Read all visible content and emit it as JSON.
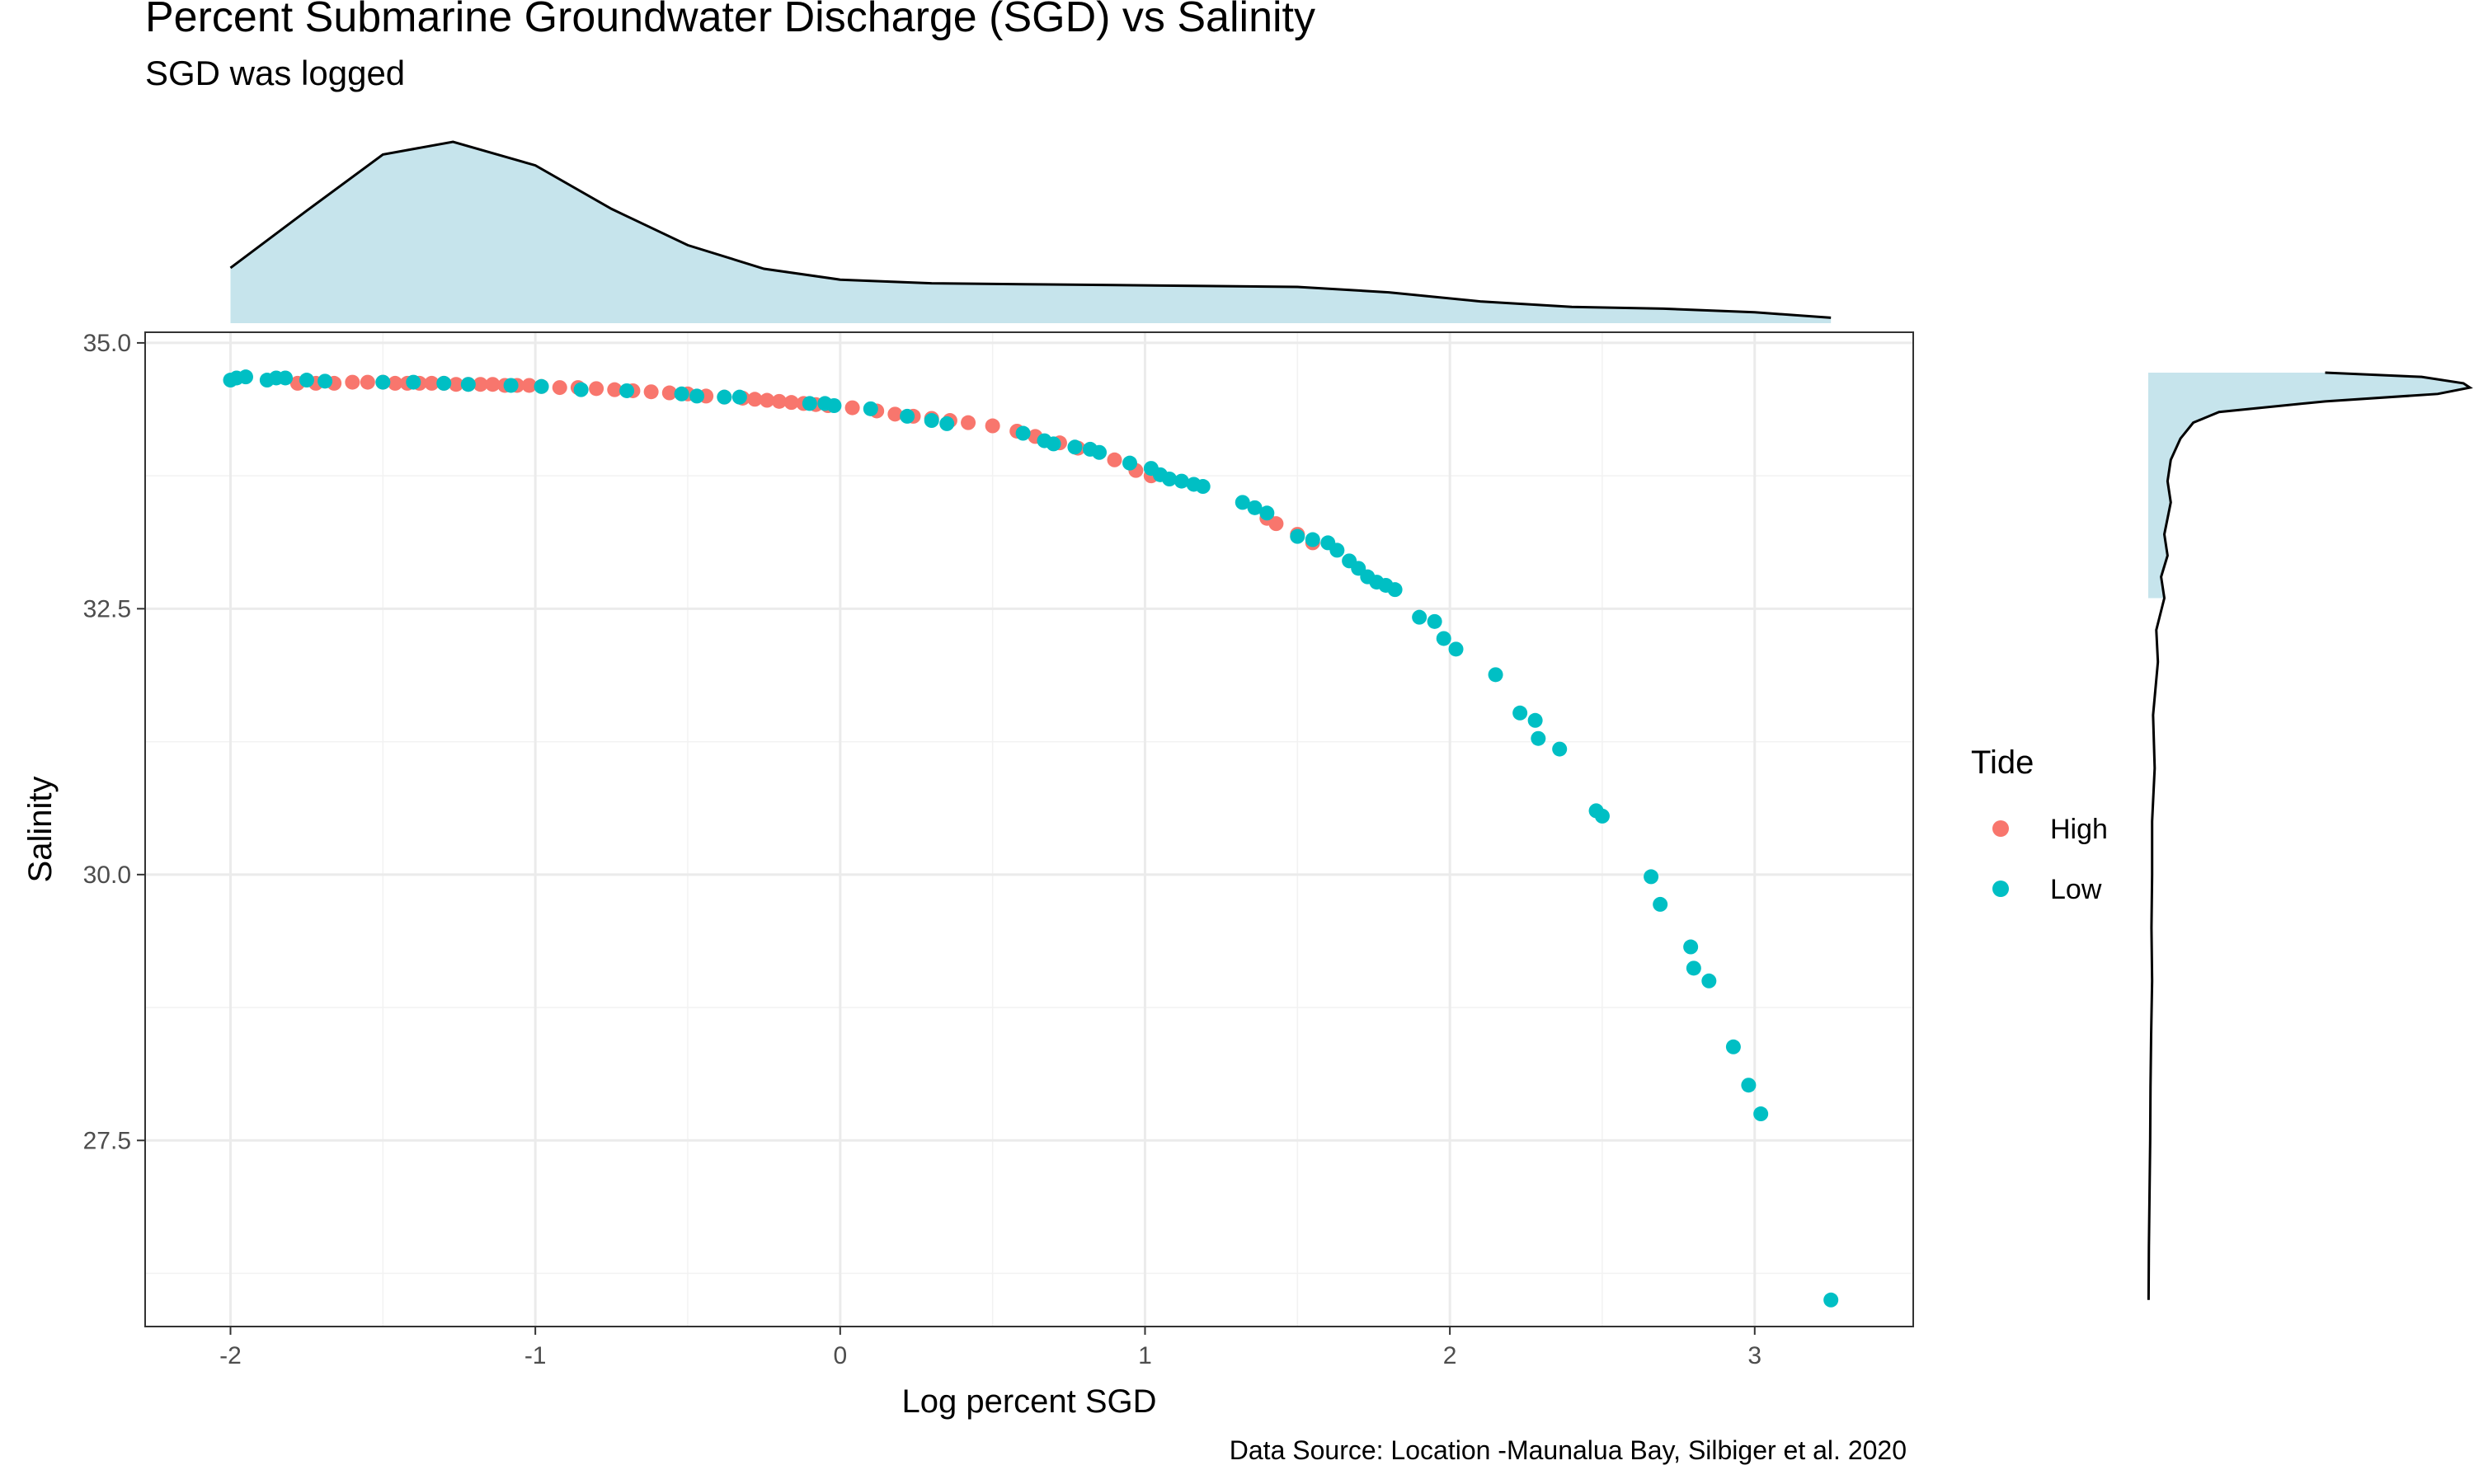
{
  "chart_data": {
    "type": "scatter",
    "title": "Percent Submarine Groundwater Discharge (SGD) vs Salinity",
    "subtitle": "SGD was logged",
    "xlabel": "Log percent SGD",
    "ylabel": "Salinity",
    "caption": "Data Source: Location -Maunalua Bay, Silbiger et al. 2020",
    "xlim": [
      -2.28,
      3.52
    ],
    "ylim": [
      25.75,
      35.1
    ],
    "x_ticks": [
      -2,
      -1,
      0,
      1,
      2,
      3
    ],
    "x_tick_labels": [
      "-2",
      "-1",
      "0",
      "1",
      "2",
      "3"
    ],
    "y_ticks": [
      27.5,
      30.0,
      32.5,
      35.0
    ],
    "y_tick_labels": [
      "27.5",
      "30.0",
      "32.5",
      "35.0"
    ],
    "grid": true,
    "legend": {
      "title": "Tide",
      "position": "right",
      "entries": [
        {
          "label": "High",
          "color": "#F8766D"
        },
        {
          "label": "Low",
          "color": "#00BFC4"
        }
      ]
    },
    "marginal_plots": {
      "top": "density of Log percent SGD",
      "right": "density of Salinity",
      "fill": "#c6e4ec"
    },
    "series": [
      {
        "name": "High",
        "color": "#F8766D",
        "points": [
          [
            -1.78,
            34.62
          ],
          [
            -1.72,
            34.62
          ],
          [
            -1.66,
            34.62
          ],
          [
            -1.6,
            34.63
          ],
          [
            -1.55,
            34.63
          ],
          [
            -1.5,
            34.63
          ],
          [
            -1.46,
            34.62
          ],
          [
            -1.42,
            34.62
          ],
          [
            -1.38,
            34.62
          ],
          [
            -1.34,
            34.62
          ],
          [
            -1.3,
            34.62
          ],
          [
            -1.26,
            34.61
          ],
          [
            -1.22,
            34.61
          ],
          [
            -1.18,
            34.61
          ],
          [
            -1.14,
            34.61
          ],
          [
            -1.1,
            34.6
          ],
          [
            -1.06,
            34.6
          ],
          [
            -1.02,
            34.6
          ],
          [
            -0.98,
            34.59
          ],
          [
            -0.92,
            34.58
          ],
          [
            -0.86,
            34.58
          ],
          [
            -0.8,
            34.57
          ],
          [
            -0.74,
            34.56
          ],
          [
            -0.68,
            34.55
          ],
          [
            -0.62,
            34.54
          ],
          [
            -0.56,
            34.53
          ],
          [
            -0.5,
            34.52
          ],
          [
            -0.44,
            34.5
          ],
          [
            -0.38,
            34.49
          ],
          [
            -0.32,
            34.48
          ],
          [
            -0.28,
            34.47
          ],
          [
            -0.24,
            34.46
          ],
          [
            -0.2,
            34.45
          ],
          [
            -0.16,
            34.44
          ],
          [
            -0.12,
            34.43
          ],
          [
            -0.08,
            34.42
          ],
          [
            -0.04,
            34.41
          ],
          [
            0.04,
            34.39
          ],
          [
            0.12,
            34.36
          ],
          [
            0.18,
            34.33
          ],
          [
            0.24,
            34.31
          ],
          [
            0.3,
            34.29
          ],
          [
            0.36,
            34.27
          ],
          [
            0.42,
            34.25
          ],
          [
            0.5,
            34.22
          ],
          [
            0.58,
            34.17
          ],
          [
            0.64,
            34.12
          ],
          [
            0.72,
            34.06
          ],
          [
            0.78,
            34.01
          ],
          [
            0.9,
            33.9
          ],
          [
            0.97,
            33.8
          ],
          [
            1.02,
            33.75
          ],
          [
            1.4,
            33.35
          ],
          [
            1.43,
            33.3
          ],
          [
            1.5,
            33.2
          ],
          [
            1.55,
            33.12
          ]
        ]
      },
      {
        "name": "Low",
        "color": "#00BFC4",
        "points": [
          [
            -2.0,
            34.65
          ],
          [
            -1.98,
            34.67
          ],
          [
            -1.95,
            34.68
          ],
          [
            -1.88,
            34.65
          ],
          [
            -1.85,
            34.67
          ],
          [
            -1.82,
            34.67
          ],
          [
            -1.75,
            34.65
          ],
          [
            -1.69,
            34.64
          ],
          [
            -1.5,
            34.63
          ],
          [
            -1.4,
            34.63
          ],
          [
            -1.3,
            34.62
          ],
          [
            -1.22,
            34.61
          ],
          [
            -1.08,
            34.6
          ],
          [
            -0.98,
            34.59
          ],
          [
            -0.85,
            34.56
          ],
          [
            -0.7,
            34.55
          ],
          [
            -0.52,
            34.52
          ],
          [
            -0.47,
            34.5
          ],
          [
            -0.38,
            34.49
          ],
          [
            -0.33,
            34.49
          ],
          [
            -0.1,
            34.43
          ],
          [
            -0.05,
            34.43
          ],
          [
            -0.02,
            34.41
          ],
          [
            0.1,
            34.38
          ],
          [
            0.22,
            34.31
          ],
          [
            0.3,
            34.27
          ],
          [
            0.35,
            34.24
          ],
          [
            0.6,
            34.15
          ],
          [
            0.67,
            34.08
          ],
          [
            0.7,
            34.05
          ],
          [
            0.77,
            34.02
          ],
          [
            0.82,
            34.0
          ],
          [
            0.85,
            33.97
          ],
          [
            0.95,
            33.87
          ],
          [
            1.02,
            33.82
          ],
          [
            1.05,
            33.76
          ],
          [
            1.08,
            33.72
          ],
          [
            1.12,
            33.7
          ],
          [
            1.16,
            33.67
          ],
          [
            1.19,
            33.65
          ],
          [
            1.32,
            33.5
          ],
          [
            1.36,
            33.45
          ],
          [
            1.4,
            33.4
          ],
          [
            1.5,
            33.18
          ],
          [
            1.55,
            33.15
          ],
          [
            1.6,
            33.12
          ],
          [
            1.63,
            33.05
          ],
          [
            1.67,
            32.95
          ],
          [
            1.7,
            32.88
          ],
          [
            1.73,
            32.8
          ],
          [
            1.76,
            32.75
          ],
          [
            1.79,
            32.72
          ],
          [
            1.82,
            32.68
          ],
          [
            1.9,
            32.42
          ],
          [
            1.95,
            32.38
          ],
          [
            1.98,
            32.22
          ],
          [
            2.02,
            32.12
          ],
          [
            2.15,
            31.88
          ],
          [
            2.23,
            31.52
          ],
          [
            2.28,
            31.45
          ],
          [
            2.29,
            31.28
          ],
          [
            2.36,
            31.18
          ],
          [
            2.48,
            30.6
          ],
          [
            2.5,
            30.55
          ],
          [
            2.66,
            29.98
          ],
          [
            2.69,
            29.72
          ],
          [
            2.79,
            29.32
          ],
          [
            2.8,
            29.12
          ],
          [
            2.85,
            29.0
          ],
          [
            2.93,
            28.38
          ],
          [
            2.98,
            28.02
          ],
          [
            3.02,
            27.75
          ],
          [
            3.25,
            26.0
          ]
        ]
      }
    ],
    "top_density": {
      "x": [
        -2.0,
        -1.75,
        -1.5,
        -1.27,
        -1.0,
        -0.75,
        -0.5,
        -0.25,
        0.0,
        0.3,
        0.6,
        0.9,
        1.2,
        1.5,
        1.8,
        2.1,
        2.4,
        2.7,
        3.0,
        3.25
      ],
      "y": [
        0.305,
        0.62,
        0.93,
        1.0,
        0.87,
        0.63,
        0.43,
        0.3,
        0.24,
        0.22,
        0.215,
        0.21,
        0.205,
        0.2,
        0.17,
        0.12,
        0.09,
        0.08,
        0.06,
        0.03
      ]
    },
    "right_density": {
      "y": [
        34.72,
        34.68,
        34.62,
        34.58,
        34.52,
        34.45,
        34.35,
        34.25,
        34.1,
        33.9,
        33.7,
        33.5,
        33.2,
        33.0,
        32.8,
        32.6,
        32.3,
        32.0,
        31.5,
        31.0,
        30.5,
        30.0,
        29.5,
        29.0,
        28.5,
        28.0,
        27.5,
        27.0,
        26.5,
        26.0
      ],
      "density": [
        0.55,
        0.85,
        0.98,
        1.0,
        0.9,
        0.55,
        0.22,
        0.14,
        0.1,
        0.07,
        0.06,
        0.07,
        0.05,
        0.06,
        0.04,
        0.05,
        0.025,
        0.03,
        0.015,
        0.02,
        0.012,
        0.012,
        0.01,
        0.012,
        0.009,
        0.007,
        0.006,
        0.004,
        0.002,
        0.001
      ]
    }
  }
}
